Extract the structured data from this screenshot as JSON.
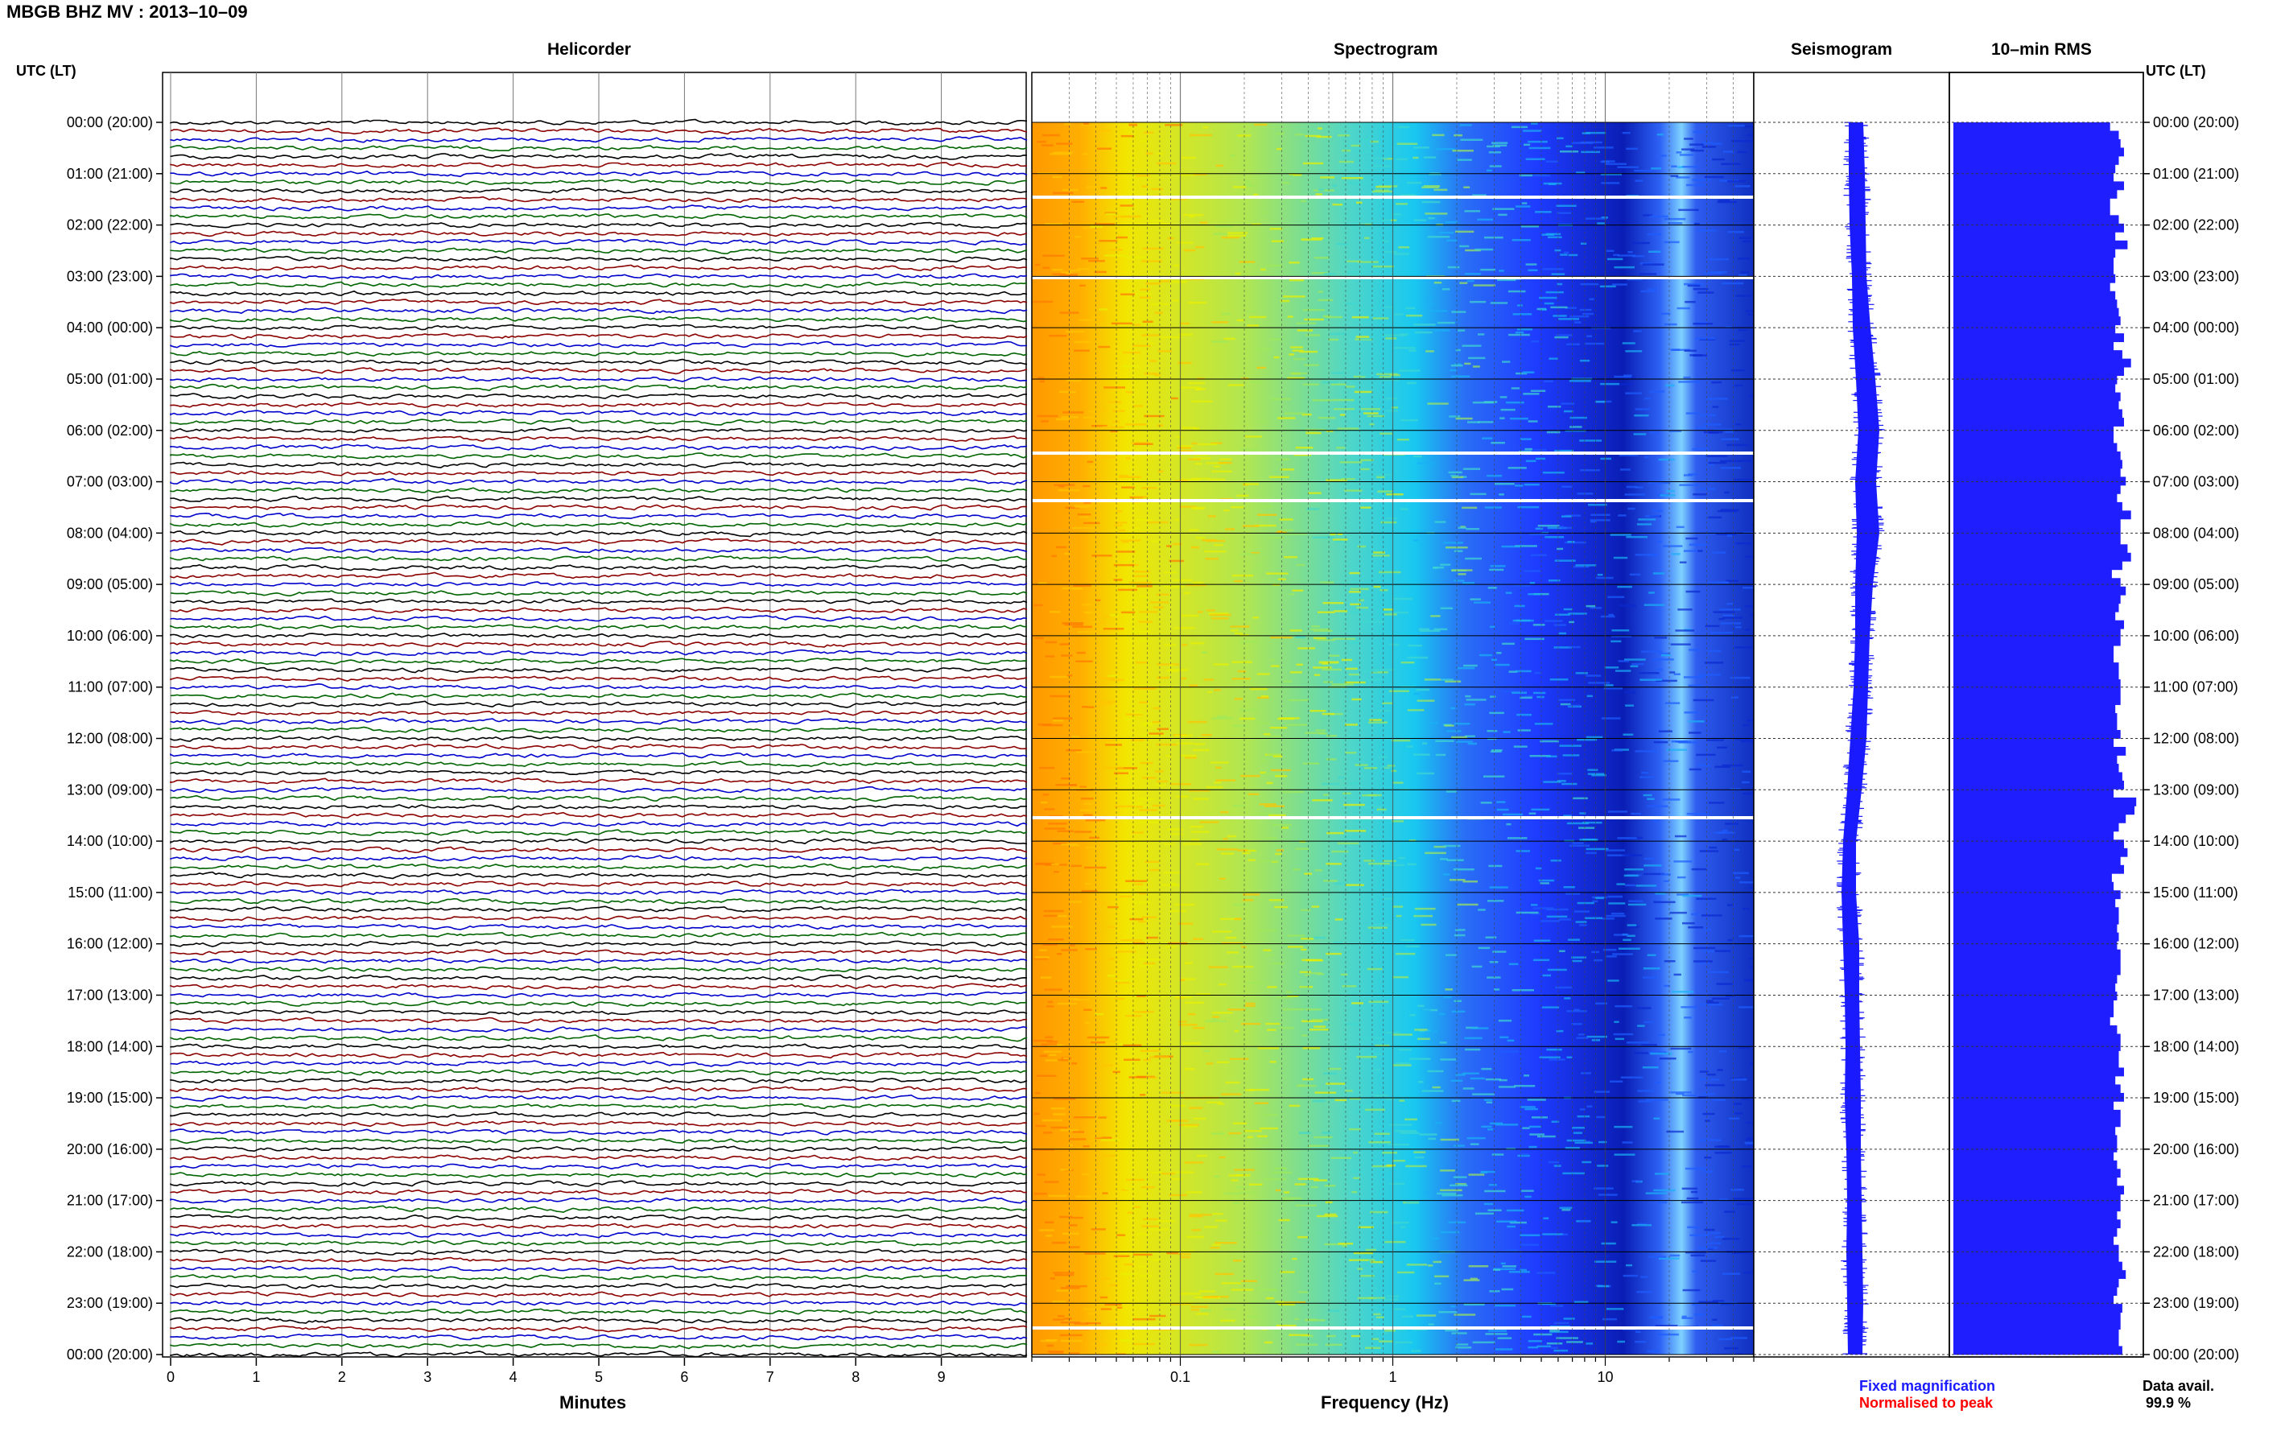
{
  "header": {
    "title": "MBGB BHZ MV : 2013–10–09",
    "utc_label_left": "UTC (LT)",
    "utc_label_right": "UTC (LT)"
  },
  "panels": {
    "helicorder_title": "Helicorder",
    "spectrogram_title": "Spectrogram",
    "seismogram_title": "Seismogram",
    "rms_title": "10–min RMS"
  },
  "legend": {
    "fixed": "Fixed magnification",
    "normalised": "Normalised to peak",
    "data_avail_label": "Data avail.",
    "data_avail_value": "99.9 %"
  },
  "colors": {
    "trace_cycle": [
      "#000000",
      "#8b0000",
      "#0000cc",
      "#006400"
    ],
    "seismogram": "#1a1aff",
    "rms": "#1e1eff",
    "spec_low": "#ff9900",
    "spec_mid": "#e6f000",
    "spec_cyan": "#19c8f0",
    "spec_blue": "#1e3cff",
    "spec_dark": "#0a1eb4"
  },
  "chart_data": [
    {
      "type": "line",
      "title": "Helicorder",
      "xlabel": "Minutes",
      "ylabel": "UTC (LT)",
      "x_ticks": [
        "0",
        "1",
        "2",
        "3",
        "4",
        "5",
        "6",
        "7",
        "8",
        "9"
      ],
      "xlim": [
        0,
        10
      ],
      "row_minutes": 10,
      "hours": [
        "00:00 (20:00)",
        "01:00 (21:00)",
        "02:00 (22:00)",
        "03:00 (23:00)",
        "04:00 (00:00)",
        "05:00 (01:00)",
        "06:00 (02:00)",
        "07:00 (03:00)",
        "08:00 (04:00)",
        "09:00 (05:00)",
        "10:00 (06:00)",
        "11:00 (07:00)",
        "12:00 (08:00)",
        "13:00 (09:00)",
        "14:00 (10:00)",
        "15:00 (11:00)",
        "16:00 (12:00)",
        "17:00 (13:00)",
        "18:00 (14:00)",
        "19:00 (15:00)",
        "20:00 (16:00)",
        "21:00 (17:00)",
        "22:00 (18:00)",
        "23:00 (19:00)",
        "00:00 (20:00)"
      ],
      "grid": true
    },
    {
      "type": "heatmap",
      "title": "Spectrogram",
      "xlabel": "Frequency (Hz)",
      "x_scale": "log",
      "xlim": [
        0.02,
        50
      ],
      "x_ticks": [
        "0.1",
        "1",
        "10"
      ],
      "grid": true
    },
    {
      "type": "line",
      "title": "Seismogram",
      "envelope_half_width": [
        9,
        10,
        10,
        9,
        11,
        12,
        13,
        13,
        14,
        11,
        9,
        9,
        10,
        9,
        8,
        9,
        10,
        9,
        9,
        10,
        9,
        9,
        10,
        10,
        9
      ],
      "envelope_center": [
        0,
        1,
        2,
        4,
        7,
        12,
        16,
        12,
        15,
        10,
        8,
        6,
        3,
        -2,
        -8,
        -9,
        -6,
        -5,
        -4,
        -4,
        -3,
        -2,
        -2,
        -1,
        -1
      ]
    },
    {
      "type": "bar",
      "title": "10–min RMS",
      "orientation": "horizontal",
      "values": [
        90,
        95,
        96,
        98,
        95,
        93,
        92,
        98,
        94,
        90,
        90,
        95,
        98,
        93,
        100,
        93,
        92,
        92,
        93,
        90,
        93,
        94,
        95,
        96,
        93,
        98,
        92,
        97,
        102,
        98,
        94,
        93,
        96,
        95,
        97,
        98,
        92,
        92,
        94,
        96,
        97,
        96,
        99,
        96,
        94,
        97,
        102,
        96,
        96,
        96,
        100,
        102,
        97,
        91,
        96,
        99,
        96,
        95,
        93,
        98,
        96,
        96,
        92,
        92,
        95,
        95,
        96,
        96,
        96,
        93,
        94,
        94,
        96,
        92,
        99,
        94,
        95,
        97,
        98,
        92,
        105,
        104,
        99,
        95,
        92,
        98,
        100,
        96,
        98,
        91,
        92,
        96,
        93,
        95,
        95,
        94,
        95,
        94,
        96,
        96,
        96,
        94,
        93,
        94,
        92,
        92,
        90,
        94,
        96,
        96,
        95,
        95,
        98,
        93,
        96,
        98,
        92,
        96,
        96,
        93,
        94,
        94,
        92,
        94,
        96,
        94,
        98,
        96,
        96,
        94,
        96,
        94,
        92,
        95,
        95,
        97,
        99,
        95,
        94,
        92,
        97,
        96,
        96,
        95,
        95,
        97
      ],
      "xlim": [
        0,
        110
      ]
    }
  ]
}
